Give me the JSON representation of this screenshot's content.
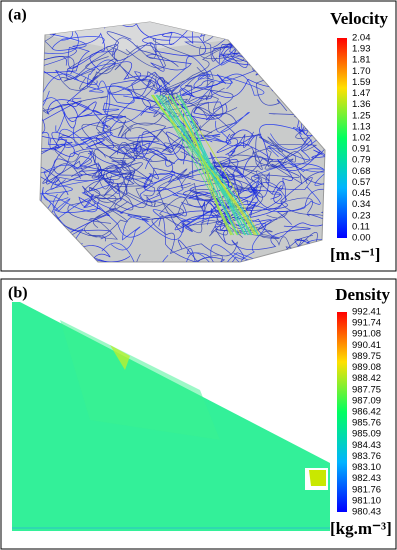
{
  "panels": [
    {
      "label": "(a)",
      "colorbar": {
        "title": "Velocity",
        "ticks": [
          "2.04",
          "1.93",
          "1.81",
          "1.70",
          "1.59",
          "1.47",
          "1.36",
          "1.25",
          "1.13",
          "1.02",
          "0.91",
          "0.79",
          "0.68",
          "0.57",
          "0.45",
          "0.34",
          "0.23",
          "0.11",
          "0.00"
        ],
        "unit": "[m.s⁻¹]"
      }
    },
    {
      "label": "(b)",
      "colorbar": {
        "title": "Density",
        "ticks": [
          "992.41",
          "991.74",
          "991.08",
          "990.41",
          "989.75",
          "989.08",
          "988.42",
          "987.75",
          "987.09",
          "986.42",
          "985.76",
          "985.09",
          "984.43",
          "983.76",
          "983.10",
          "982.43",
          "981.76",
          "981.10",
          "980.43"
        ],
        "unit": "[kg.m⁻³]"
      }
    }
  ]
}
